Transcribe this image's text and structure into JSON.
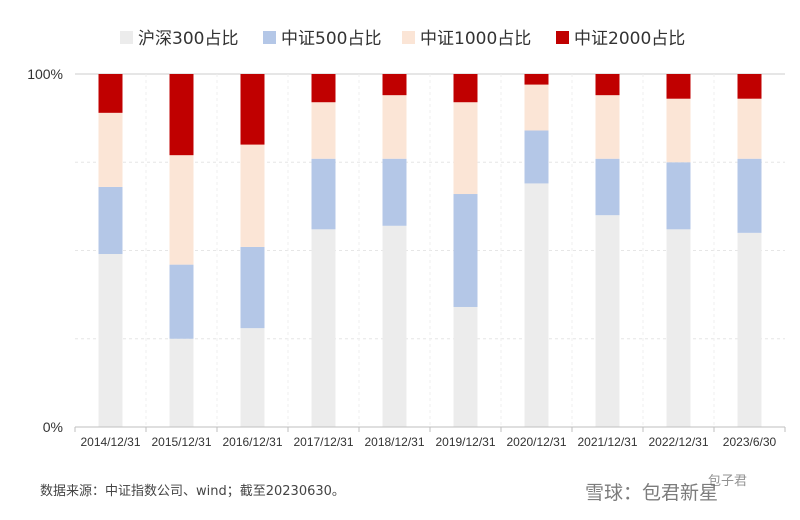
{
  "chart_data": {
    "type": "bar",
    "stacked": true,
    "categories": [
      "2014/12/31",
      "2015/12/31",
      "2016/12/31",
      "2017/12/31",
      "2018/12/31",
      "2019/12/31",
      "2020/12/31",
      "2021/12/31",
      "2022/12/31",
      "2023/6/30"
    ],
    "series": [
      {
        "name": "沪深300占比",
        "color": "#ececec",
        "values": [
          49,
          25,
          28,
          56,
          57,
          34,
          69,
          60,
          56,
          55
        ]
      },
      {
        "name": "中证500占比",
        "color": "#b4c7e7",
        "values": [
          19,
          21,
          23,
          20,
          19,
          32,
          15,
          16,
          19,
          21
        ]
      },
      {
        "name": "中证1000占比",
        "color": "#fbe5d6",
        "values": [
          21,
          31,
          29,
          16,
          18,
          26,
          13,
          18,
          18,
          17
        ]
      },
      {
        "name": "中证2000占比",
        "color": "#c00000",
        "values": [
          11,
          23,
          20,
          8,
          6,
          8,
          3,
          6,
          7,
          7
        ]
      }
    ],
    "yticks": [
      "0%",
      "100%"
    ],
    "ylim": [
      0,
      100
    ],
    "grid": true,
    "legend_position": "top"
  },
  "source_note": "数据来源：中证指数公司、wind；截至20230630。",
  "watermark": {
    "main": "雪球：包君新星",
    "sub": "包子君"
  }
}
